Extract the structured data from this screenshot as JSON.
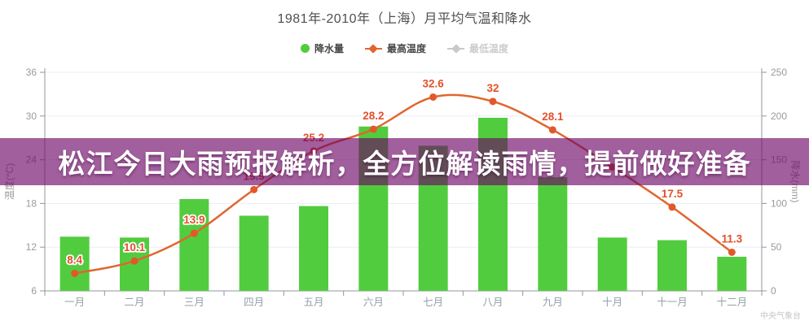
{
  "chart": {
    "title": "1981年-2010年（上海）月平均气温和降水",
    "legend": [
      {
        "label": "降水量",
        "type": "bar",
        "color": "#52cc3f",
        "active": true
      },
      {
        "label": "最高温度",
        "type": "line",
        "color": "#e0662f",
        "active": true
      },
      {
        "label": "最低温度",
        "type": "line",
        "color": "#c9c9c9",
        "active": false
      }
    ],
    "watermark": "中央气象台"
  },
  "overlay": {
    "headline": "松江今日大雨预报解析，全方位解读雨情，提前做好准备",
    "background": "rgba(107,2,100,0.63)",
    "text_color": "#ffffff"
  },
  "chart_data": {
    "type": "combo",
    "title": "1981年-2010年（上海）月平均气温和降水",
    "categories": [
      "一月",
      "二月",
      "三月",
      "四月",
      "五月",
      "六月",
      "七月",
      "八月",
      "九月",
      "十月",
      "十一月",
      "十二月"
    ],
    "series": [
      {
        "name": "降水量",
        "type": "bar",
        "yaxis": "right",
        "unit": "mm",
        "color": "#52cc3f",
        "values": [
          62,
          61,
          105,
          86,
          97,
          188,
          166,
          198,
          130,
          61,
          58,
          39
        ]
      },
      {
        "name": "最高温度",
        "type": "line",
        "yaxis": "left",
        "unit": "°C",
        "color": "#e0662f",
        "marker_color": "#e2582a",
        "label_color": "#e3502a",
        "values": [
          8.4,
          10.1,
          13.9,
          19.9,
          25.2,
          28.2,
          32.6,
          32,
          28.1,
          23,
          17.5,
          11.3
        ],
        "point_labels": [
          "8.4",
          "10.1",
          "13.9",
          "19.9",
          "25.2",
          "28.2",
          "32.6",
          "32",
          "28.1",
          "",
          "17.5",
          "11.3"
        ]
      },
      {
        "name": "最低温度",
        "type": "line",
        "yaxis": "left",
        "unit": "°C",
        "color": "#c9c9c9",
        "hidden": true,
        "values": []
      }
    ],
    "y_left": {
      "name": "温度(°C)",
      "min": 6,
      "max": 36,
      "ticks": [
        36,
        30,
        24,
        18,
        12,
        6
      ]
    },
    "y_right": {
      "name": "降水(mm)",
      "min": 0,
      "max": 250,
      "ticks": [
        250,
        200,
        150,
        100,
        50,
        0
      ]
    },
    "grid": true,
    "legend_position": "top"
  }
}
